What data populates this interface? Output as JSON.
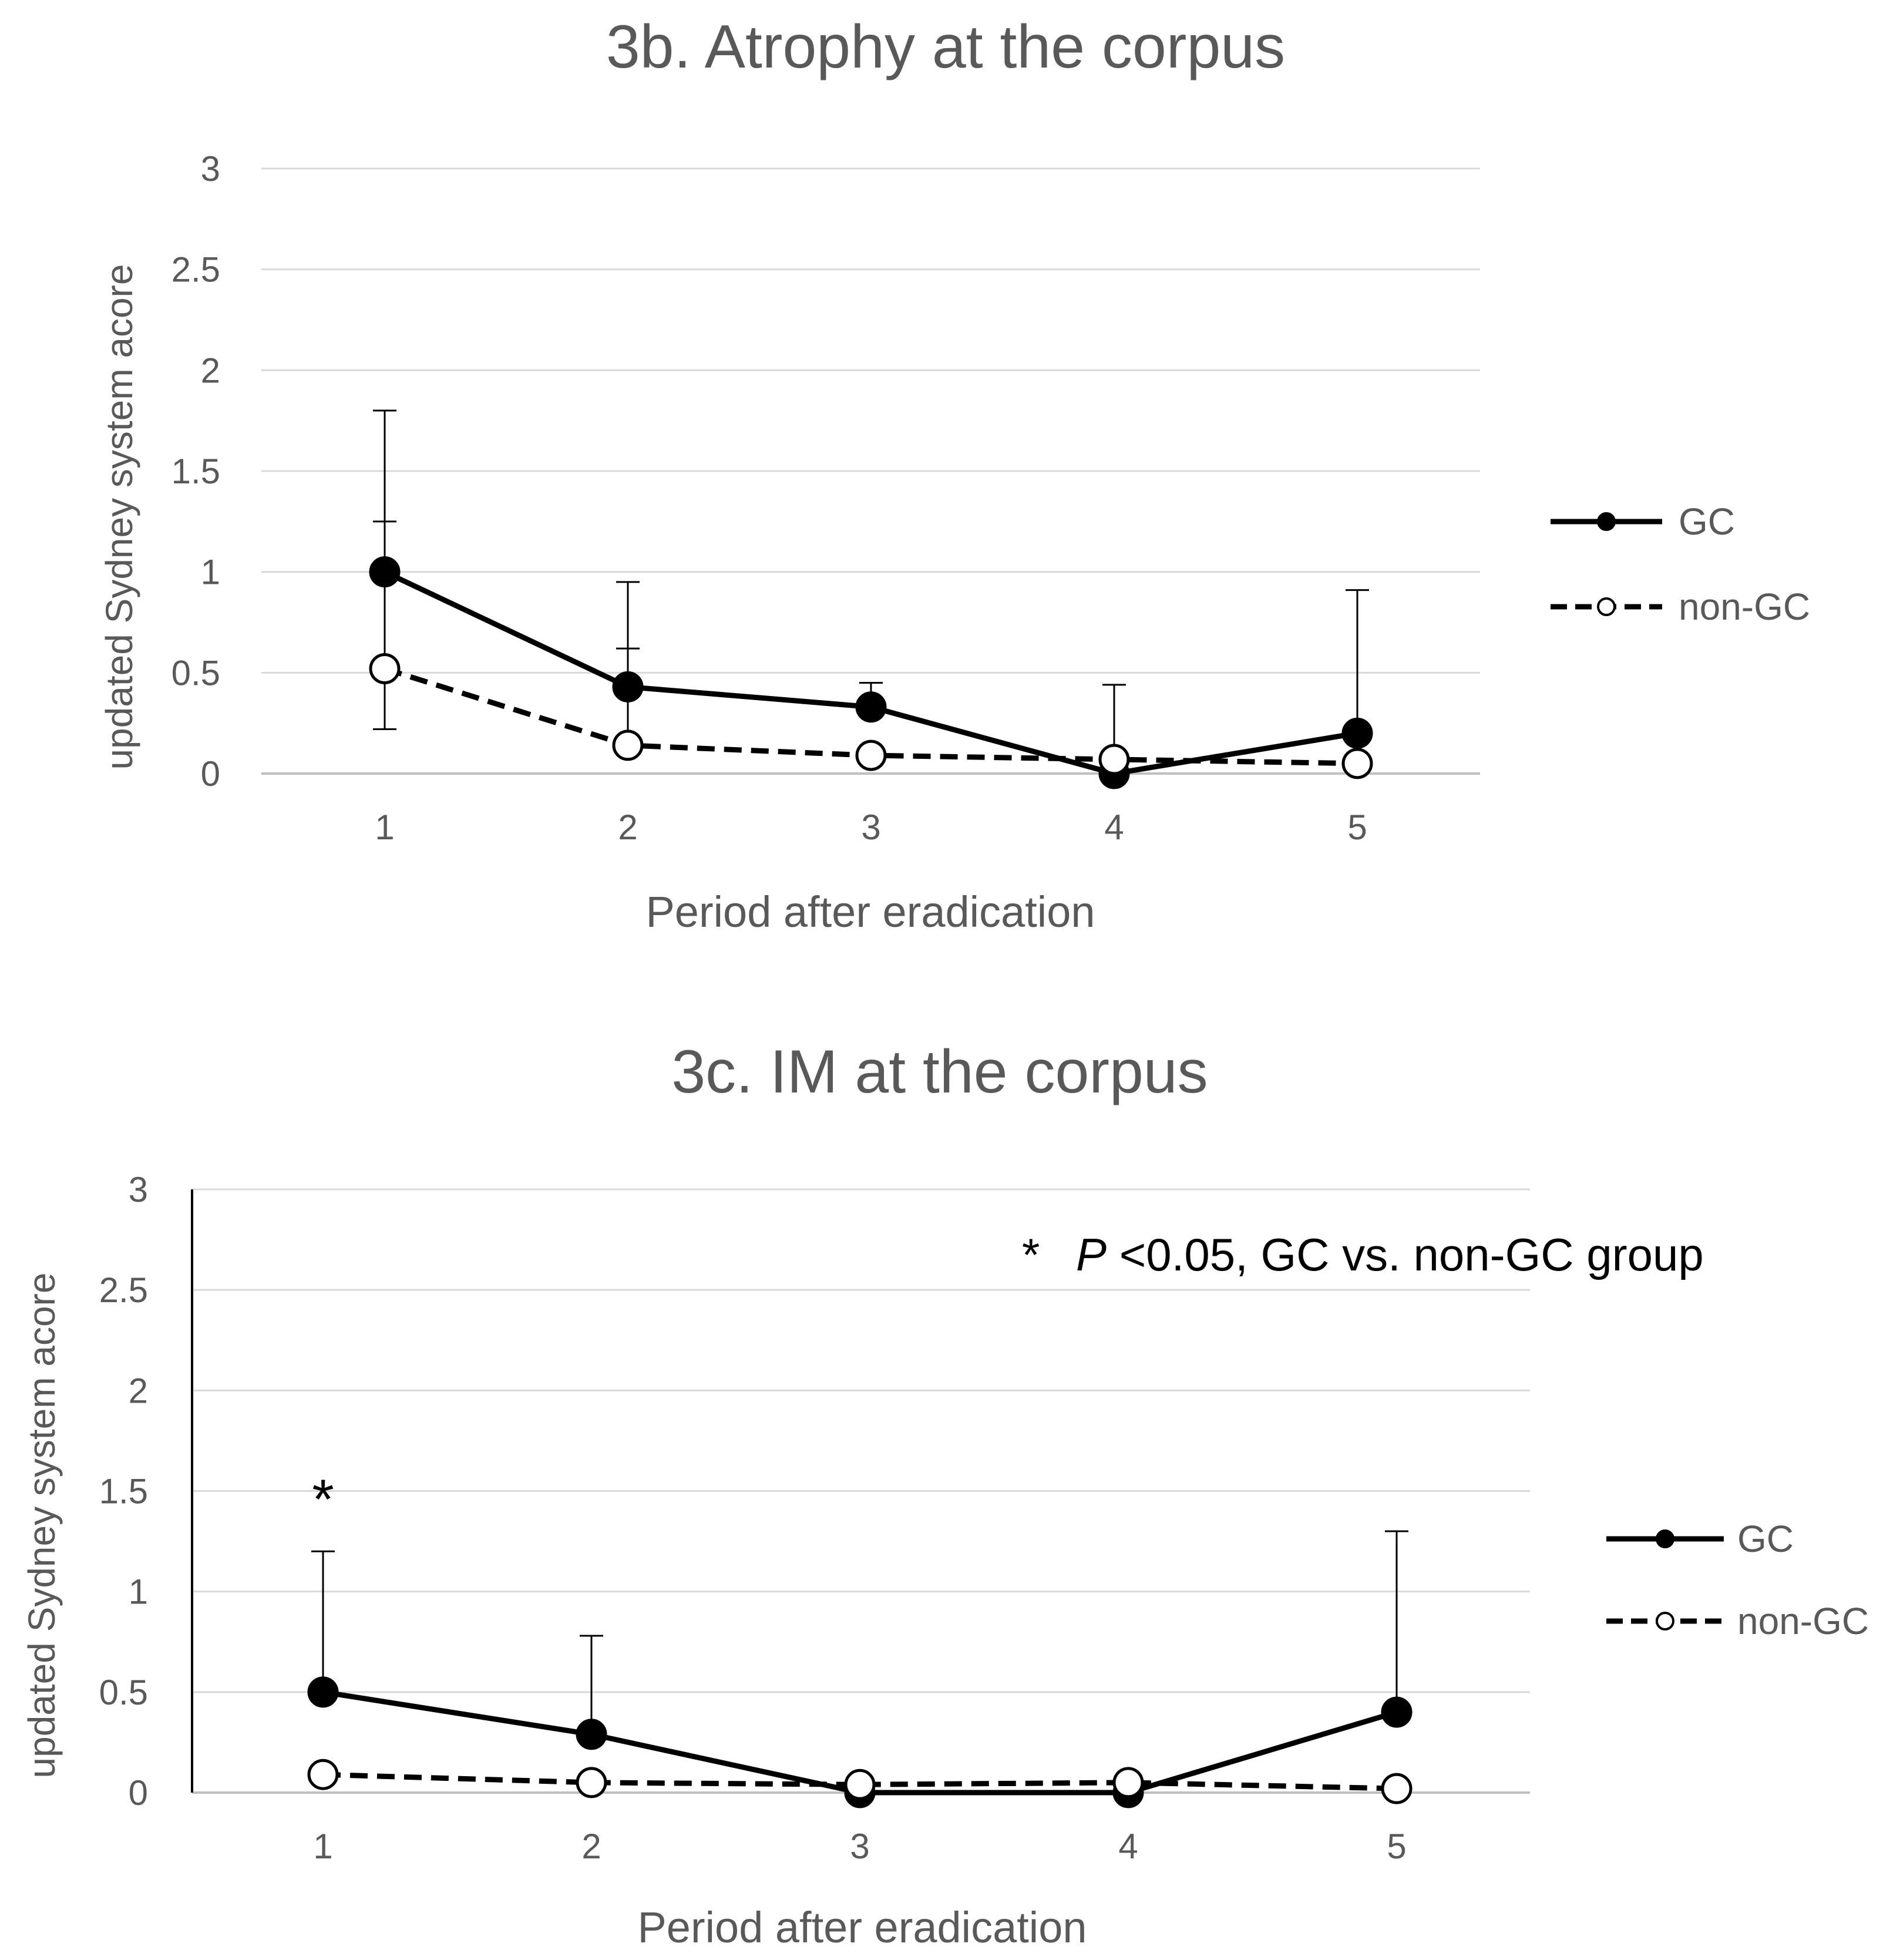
{
  "chart_data": [
    {
      "type": "line",
      "title": "3b. Atrophy at the corpus",
      "xlabel": "Period after eradication",
      "ylabel": "updated Sydney system acore",
      "x": [
        1,
        2,
        3,
        4,
        5
      ],
      "x_tick_labels": [
        "1",
        "2",
        "3",
        "4",
        "5"
      ],
      "y_tick_labels": [
        "0",
        "0.5",
        "1",
        "1.5",
        "2",
        "2.5",
        "3"
      ],
      "ylim": [
        0,
        3
      ],
      "grid": true,
      "legend_position": "right",
      "series": [
        {
          "name": "GC",
          "values": [
            1.0,
            0.43,
            0.33,
            0.0,
            0.2
          ],
          "error_upper": [
            1.8,
            0.95,
            0.45,
            0.44,
            0.91
          ],
          "line_style": "solid",
          "marker": "filled-circle",
          "color": "#000000"
        },
        {
          "name": "non-GC",
          "values": [
            0.52,
            0.14,
            0.09,
            0.07,
            0.05
          ],
          "error_upper": [
            1.25,
            0.62,
            0.0,
            0.0,
            0.0
          ],
          "error_lower": [
            0.22,
            0.0,
            0.0,
            0.0,
            0.0
          ],
          "line_style": "dashed",
          "marker": "open-circle",
          "color": "#000000"
        }
      ]
    },
    {
      "type": "line",
      "title": "3c. IM at the corpus",
      "xlabel": "Period after eradication",
      "ylabel": "updated Sydney system acore",
      "x": [
        1,
        2,
        3,
        4,
        5
      ],
      "x_tick_labels": [
        "1",
        "2",
        "3",
        "4",
        "5"
      ],
      "y_tick_labels": [
        "0",
        "0.5",
        "1",
        "1.5",
        "2",
        "2.5",
        "3"
      ],
      "ylim": [
        0,
        3
      ],
      "grid": true,
      "legend_position": "right",
      "annotation": {
        "star": "*",
        "italic": "P",
        "rest": "<0.05, GC vs. non-GC group"
      },
      "significance_marker": {
        "x": 1,
        "y": 1.48,
        "text": "*"
      },
      "series": [
        {
          "name": "GC",
          "values": [
            0.5,
            0.29,
            0.0,
            0.0,
            0.4
          ],
          "error_upper": [
            1.2,
            0.78,
            0.0,
            0.0,
            1.3
          ],
          "line_style": "solid",
          "marker": "filled-circle",
          "color": "#000000"
        },
        {
          "name": "non-GC",
          "values": [
            0.09,
            0.05,
            0.04,
            0.05,
            0.02
          ],
          "line_style": "dashed",
          "marker": "open-circle",
          "color": "#000000"
        }
      ]
    }
  ]
}
